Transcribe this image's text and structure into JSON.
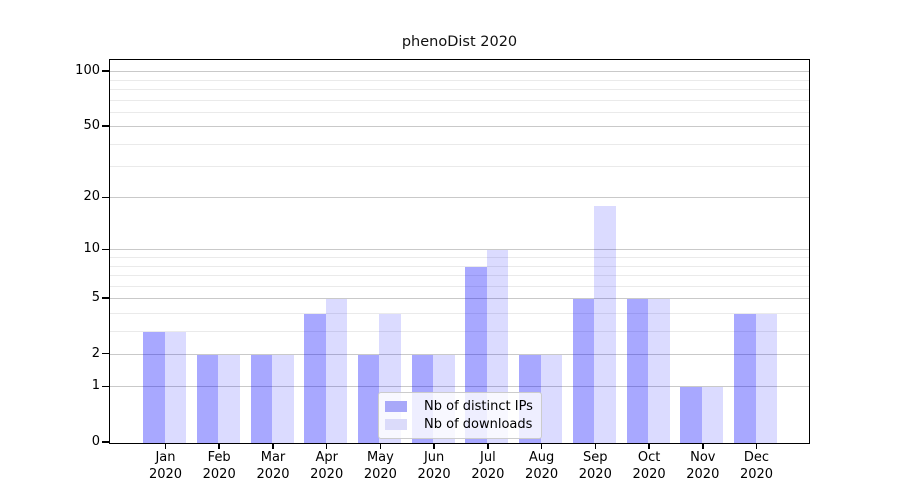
{
  "chart_data": {
    "type": "bar",
    "title": "phenoDist 2020",
    "categories": [
      {
        "month": "Jan",
        "year": "2020"
      },
      {
        "month": "Feb",
        "year": "2020"
      },
      {
        "month": "Mar",
        "year": "2020"
      },
      {
        "month": "Apr",
        "year": "2020"
      },
      {
        "month": "May",
        "year": "2020"
      },
      {
        "month": "Jun",
        "year": "2020"
      },
      {
        "month": "Jul",
        "year": "2020"
      },
      {
        "month": "Aug",
        "year": "2020"
      },
      {
        "month": "Sep",
        "year": "2020"
      },
      {
        "month": "Oct",
        "year": "2020"
      },
      {
        "month": "Nov",
        "year": "2020"
      },
      {
        "month": "Dec",
        "year": "2020"
      }
    ],
    "series": [
      {
        "name": "Nb of distinct IPs",
        "color": "rgba(0,0,255,0.34)",
        "swatch_hex": "#a8a8f9",
        "values": [
          3,
          2,
          2,
          4,
          2,
          2,
          8,
          2,
          5,
          5,
          1,
          4
        ]
      },
      {
        "name": "Nb of downloads",
        "color": "rgba(0,0,255,0.14)",
        "swatch_hex": "#dbdbfa",
        "values": [
          3,
          2,
          2,
          5,
          4,
          2,
          10,
          2,
          18,
          5,
          1,
          4
        ]
      }
    ],
    "yaxis": {
      "scale": "log1p",
      "major_ticks": [
        0,
        1,
        2,
        5,
        10,
        20,
        50,
        100
      ],
      "minor_ticks": [
        3,
        4,
        6,
        7,
        8,
        9,
        30,
        40,
        60,
        70,
        80,
        90
      ],
      "ymin": 0,
      "ymax_visible": 113
    },
    "xlabel": "",
    "ylabel": "",
    "legend": {
      "position": "lower center",
      "entries": [
        "Nb of distinct IPs",
        "Nb of downloads"
      ]
    },
    "grid": {
      "major_color": "#c9c9c9",
      "minor_color": "#eaeaea"
    }
  }
}
